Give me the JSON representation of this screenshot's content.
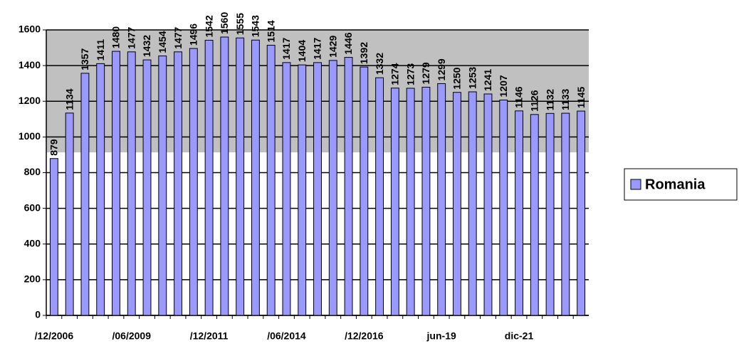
{
  "chart_data": {
    "type": "bar",
    "categories": [
      "/12/2006",
      null,
      null,
      null,
      null,
      "/06/2009",
      null,
      null,
      null,
      null,
      "/12/2011",
      null,
      null,
      null,
      null,
      "/06/2014",
      null,
      null,
      null,
      null,
      "/12/2016",
      null,
      null,
      null,
      null,
      "jun-19",
      null,
      null,
      null,
      null,
      "dic-21",
      null,
      null,
      null,
      null
    ],
    "series": [
      {
        "name": "Romania",
        "color": "#9999ff",
        "values": [
          879,
          1134,
          1357,
          1411,
          1480,
          1477,
          1432,
          1454,
          1477,
          1496,
          1542,
          1560,
          1555,
          1543,
          1514,
          1417,
          1404,
          1417,
          1429,
          1446,
          1392,
          1332,
          1274,
          1273,
          1279,
          1299,
          1250,
          1253,
          1241,
          1207,
          1146,
          1126,
          1132,
          1133,
          1145
        ]
      }
    ],
    "ylim": [
      0,
      1600
    ],
    "yticks": [
      0,
      200,
      400,
      600,
      800,
      1000,
      1200,
      1400,
      1600
    ],
    "grid": true,
    "legend": "right"
  }
}
